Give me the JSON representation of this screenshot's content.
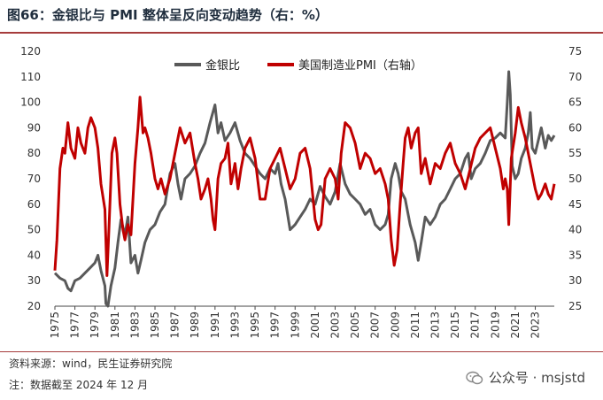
{
  "title": "图66：金银比与 PMI 整体呈反向变动趋势（右：%）",
  "footer": {
    "source": "资料来源：wind，民生证券研究院",
    "note": "注：数据截至 2024 年 12 月",
    "watermark": "公众号 · msjstd"
  },
  "colors": {
    "series_gold_silver": "#595959",
    "series_pmi": "#c00000",
    "accent": "#a63c3c"
  },
  "chart_data": {
    "type": "line",
    "x_tick_labels": [
      "1975",
      "1977",
      "1979",
      "1981",
      "1983",
      "1985",
      "1987",
      "1989",
      "1991",
      "1993",
      "1995",
      "1997",
      "1999",
      "2001",
      "2003",
      "2005",
      "2007",
      "2009",
      "2011",
      "2013",
      "2015",
      "2017",
      "2019",
      "2021",
      "2023"
    ],
    "x_range": [
      1975,
      2024.9
    ],
    "left_axis": {
      "ylim": [
        20,
        120
      ],
      "ticks": [
        "20",
        "30",
        "40",
        "50",
        "60",
        "70",
        "80",
        "90",
        "100",
        "110",
        "120"
      ]
    },
    "right_axis": {
      "ylim": [
        25,
        75
      ],
      "ticks": [
        "25",
        "30",
        "35",
        "40",
        "45",
        "50",
        "55",
        "60",
        "65",
        "70",
        "75"
      ]
    },
    "legend_position": "top",
    "series": [
      {
        "name": "金银比",
        "axis": "left",
        "points": [
          [
            1975.0,
            33
          ],
          [
            1975.5,
            31
          ],
          [
            1976.0,
            30
          ],
          [
            1976.3,
            27
          ],
          [
            1976.6,
            26
          ],
          [
            1977.0,
            30
          ],
          [
            1977.5,
            31
          ],
          [
            1978.0,
            33
          ],
          [
            1978.5,
            35
          ],
          [
            1979.0,
            37
          ],
          [
            1979.3,
            40
          ],
          [
            1979.6,
            34
          ],
          [
            1980.0,
            28
          ],
          [
            1980.1,
            21
          ],
          [
            1980.3,
            20
          ],
          [
            1980.6,
            28
          ],
          [
            1981.0,
            35
          ],
          [
            1981.3,
            45
          ],
          [
            1981.6,
            54
          ],
          [
            1982.0,
            48
          ],
          [
            1982.3,
            55
          ],
          [
            1982.6,
            37
          ],
          [
            1983.0,
            40
          ],
          [
            1983.3,
            33
          ],
          [
            1983.6,
            38
          ],
          [
            1984.0,
            45
          ],
          [
            1984.5,
            50
          ],
          [
            1985.0,
            52
          ],
          [
            1985.5,
            57
          ],
          [
            1986.0,
            60
          ],
          [
            1986.5,
            72
          ],
          [
            1987.0,
            76
          ],
          [
            1987.3,
            68
          ],
          [
            1987.6,
            62
          ],
          [
            1988.0,
            70
          ],
          [
            1988.5,
            72
          ],
          [
            1989.0,
            75
          ],
          [
            1989.5,
            80
          ],
          [
            1990.0,
            84
          ],
          [
            1990.5,
            92
          ],
          [
            1991.0,
            99
          ],
          [
            1991.3,
            88
          ],
          [
            1991.6,
            92
          ],
          [
            1992.0,
            85
          ],
          [
            1992.5,
            88
          ],
          [
            1993.0,
            92
          ],
          [
            1993.5,
            85
          ],
          [
            1994.0,
            80
          ],
          [
            1994.5,
            78
          ],
          [
            1995.0,
            75
          ],
          [
            1995.5,
            72
          ],
          [
            1996.0,
            70
          ],
          [
            1996.5,
            74
          ],
          [
            1997.0,
            72
          ],
          [
            1997.3,
            76
          ],
          [
            1997.6,
            68
          ],
          [
            1998.0,
            62
          ],
          [
            1998.5,
            50
          ],
          [
            1999.0,
            52
          ],
          [
            1999.5,
            55
          ],
          [
            2000.0,
            58
          ],
          [
            2000.5,
            62
          ],
          [
            2001.0,
            60
          ],
          [
            2001.5,
            67
          ],
          [
            2002.0,
            63
          ],
          [
            2002.5,
            60
          ],
          [
            2003.0,
            65
          ],
          [
            2003.5,
            76
          ],
          [
            2004.0,
            68
          ],
          [
            2004.5,
            64
          ],
          [
            2005.0,
            62
          ],
          [
            2005.5,
            60
          ],
          [
            2006.0,
            56
          ],
          [
            2006.5,
            58
          ],
          [
            2007.0,
            52
          ],
          [
            2007.5,
            50
          ],
          [
            2008.0,
            52
          ],
          [
            2008.3,
            56
          ],
          [
            2008.6,
            70
          ],
          [
            2009.0,
            76
          ],
          [
            2009.3,
            72
          ],
          [
            2009.6,
            65
          ],
          [
            2010.0,
            62
          ],
          [
            2010.5,
            52
          ],
          [
            2011.0,
            45
          ],
          [
            2011.3,
            38
          ],
          [
            2011.6,
            45
          ],
          [
            2012.0,
            55
          ],
          [
            2012.5,
            52
          ],
          [
            2013.0,
            55
          ],
          [
            2013.5,
            60
          ],
          [
            2014.0,
            62
          ],
          [
            2014.5,
            66
          ],
          [
            2015.0,
            70
          ],
          [
            2015.5,
            72
          ],
          [
            2016.0,
            78
          ],
          [
            2016.3,
            80
          ],
          [
            2016.6,
            70
          ],
          [
            2017.0,
            74
          ],
          [
            2017.5,
            76
          ],
          [
            2018.0,
            80
          ],
          [
            2018.5,
            85
          ],
          [
            2019.0,
            86
          ],
          [
            2019.5,
            88
          ],
          [
            2020.0,
            86
          ],
          [
            2020.2,
            100
          ],
          [
            2020.35,
            112
          ],
          [
            2020.5,
            103
          ],
          [
            2020.7,
            75
          ],
          [
            2021.0,
            70
          ],
          [
            2021.3,
            72
          ],
          [
            2021.6,
            78
          ],
          [
            2022.0,
            82
          ],
          [
            2022.3,
            88
          ],
          [
            2022.5,
            96
          ],
          [
            2022.7,
            82
          ],
          [
            2023.0,
            80
          ],
          [
            2023.3,
            85
          ],
          [
            2023.6,
            90
          ],
          [
            2024.0,
            82
          ],
          [
            2024.3,
            87
          ],
          [
            2024.6,
            85
          ],
          [
            2024.9,
            87
          ]
        ]
      },
      {
        "name": "美国制造业PMI（右轴）",
        "axis": "right",
        "points": [
          [
            1975.0,
            32
          ],
          [
            1975.2,
            38
          ],
          [
            1975.5,
            52
          ],
          [
            1975.8,
            56
          ],
          [
            1976.0,
            55
          ],
          [
            1976.3,
            61
          ],
          [
            1976.6,
            56
          ],
          [
            1977.0,
            54
          ],
          [
            1977.3,
            60
          ],
          [
            1977.6,
            57
          ],
          [
            1978.0,
            55
          ],
          [
            1978.3,
            60
          ],
          [
            1978.6,
            62
          ],
          [
            1979.0,
            60
          ],
          [
            1979.3,
            56
          ],
          [
            1979.6,
            49
          ],
          [
            1980.0,
            44
          ],
          [
            1980.2,
            31
          ],
          [
            1980.4,
            40
          ],
          [
            1980.7,
            55
          ],
          [
            1981.0,
            58
          ],
          [
            1981.2,
            55
          ],
          [
            1981.5,
            45
          ],
          [
            1981.8,
            40
          ],
          [
            1982.0,
            38
          ],
          [
            1982.3,
            41
          ],
          [
            1982.6,
            39
          ],
          [
            1983.0,
            53
          ],
          [
            1983.3,
            60
          ],
          [
            1983.5,
            66
          ],
          [
            1983.8,
            59
          ],
          [
            1984.0,
            60
          ],
          [
            1984.3,
            58
          ],
          [
            1984.6,
            55
          ],
          [
            1985.0,
            50
          ],
          [
            1985.3,
            48
          ],
          [
            1985.6,
            50
          ],
          [
            1986.0,
            47
          ],
          [
            1986.5,
            50
          ],
          [
            1987.0,
            55
          ],
          [
            1987.5,
            60
          ],
          [
            1988.0,
            57
          ],
          [
            1988.5,
            59
          ],
          [
            1989.0,
            53
          ],
          [
            1989.3,
            50
          ],
          [
            1989.6,
            46
          ],
          [
            1990.0,
            48
          ],
          [
            1990.3,
            50
          ],
          [
            1990.6,
            46
          ],
          [
            1990.8,
            42
          ],
          [
            1991.0,
            40
          ],
          [
            1991.3,
            50
          ],
          [
            1991.6,
            53
          ],
          [
            1992.0,
            54
          ],
          [
            1992.3,
            57
          ],
          [
            1992.6,
            49
          ],
          [
            1993.0,
            53
          ],
          [
            1993.3,
            48
          ],
          [
            1993.6,
            52
          ],
          [
            1994.0,
            56
          ],
          [
            1994.5,
            58
          ],
          [
            1995.0,
            54
          ],
          [
            1995.5,
            46
          ],
          [
            1996.0,
            46
          ],
          [
            1996.5,
            52
          ],
          [
            1997.0,
            54
          ],
          [
            1997.5,
            56
          ],
          [
            1998.0,
            52
          ],
          [
            1998.5,
            48
          ],
          [
            1999.0,
            50
          ],
          [
            1999.5,
            55
          ],
          [
            2000.0,
            56
          ],
          [
            2000.5,
            52
          ],
          [
            2001.0,
            42
          ],
          [
            2001.3,
            40
          ],
          [
            2001.6,
            41
          ],
          [
            2002.0,
            50
          ],
          [
            2002.5,
            52
          ],
          [
            2003.0,
            50
          ],
          [
            2003.3,
            46
          ],
          [
            2003.6,
            55
          ],
          [
            2004.0,
            61
          ],
          [
            2004.5,
            60
          ],
          [
            2005.0,
            57
          ],
          [
            2005.5,
            52
          ],
          [
            2006.0,
            55
          ],
          [
            2006.5,
            54
          ],
          [
            2007.0,
            51
          ],
          [
            2007.5,
            52
          ],
          [
            2008.0,
            49
          ],
          [
            2008.3,
            46
          ],
          [
            2008.6,
            38
          ],
          [
            2008.9,
            33
          ],
          [
            2009.2,
            36
          ],
          [
            2009.5,
            45
          ],
          [
            2009.8,
            53
          ],
          [
            2010.0,
            58
          ],
          [
            2010.3,
            60
          ],
          [
            2010.6,
            56
          ],
          [
            2011.0,
            59
          ],
          [
            2011.3,
            60
          ],
          [
            2011.6,
            51
          ],
          [
            2012.0,
            54
          ],
          [
            2012.5,
            49
          ],
          [
            2013.0,
            53
          ],
          [
            2013.5,
            52
          ],
          [
            2014.0,
            55
          ],
          [
            2014.5,
            57
          ],
          [
            2015.0,
            53
          ],
          [
            2015.5,
            51
          ],
          [
            2016.0,
            48
          ],
          [
            2016.5,
            52
          ],
          [
            2017.0,
            56
          ],
          [
            2017.5,
            58
          ],
          [
            2018.0,
            59
          ],
          [
            2018.5,
            60
          ],
          [
            2019.0,
            56
          ],
          [
            2019.5,
            52
          ],
          [
            2019.8,
            48
          ],
          [
            2020.0,
            50
          ],
          [
            2020.2,
            48
          ],
          [
            2020.35,
            41
          ],
          [
            2020.6,
            54
          ],
          [
            2021.0,
            59
          ],
          [
            2021.3,
            64
          ],
          [
            2021.6,
            61
          ],
          [
            2022.0,
            58
          ],
          [
            2022.3,
            55
          ],
          [
            2022.6,
            52
          ],
          [
            2023.0,
            48
          ],
          [
            2023.3,
            46
          ],
          [
            2023.6,
            47
          ],
          [
            2024.0,
            49
          ],
          [
            2024.3,
            47
          ],
          [
            2024.6,
            46
          ],
          [
            2024.9,
            49
          ]
        ]
      }
    ]
  }
}
